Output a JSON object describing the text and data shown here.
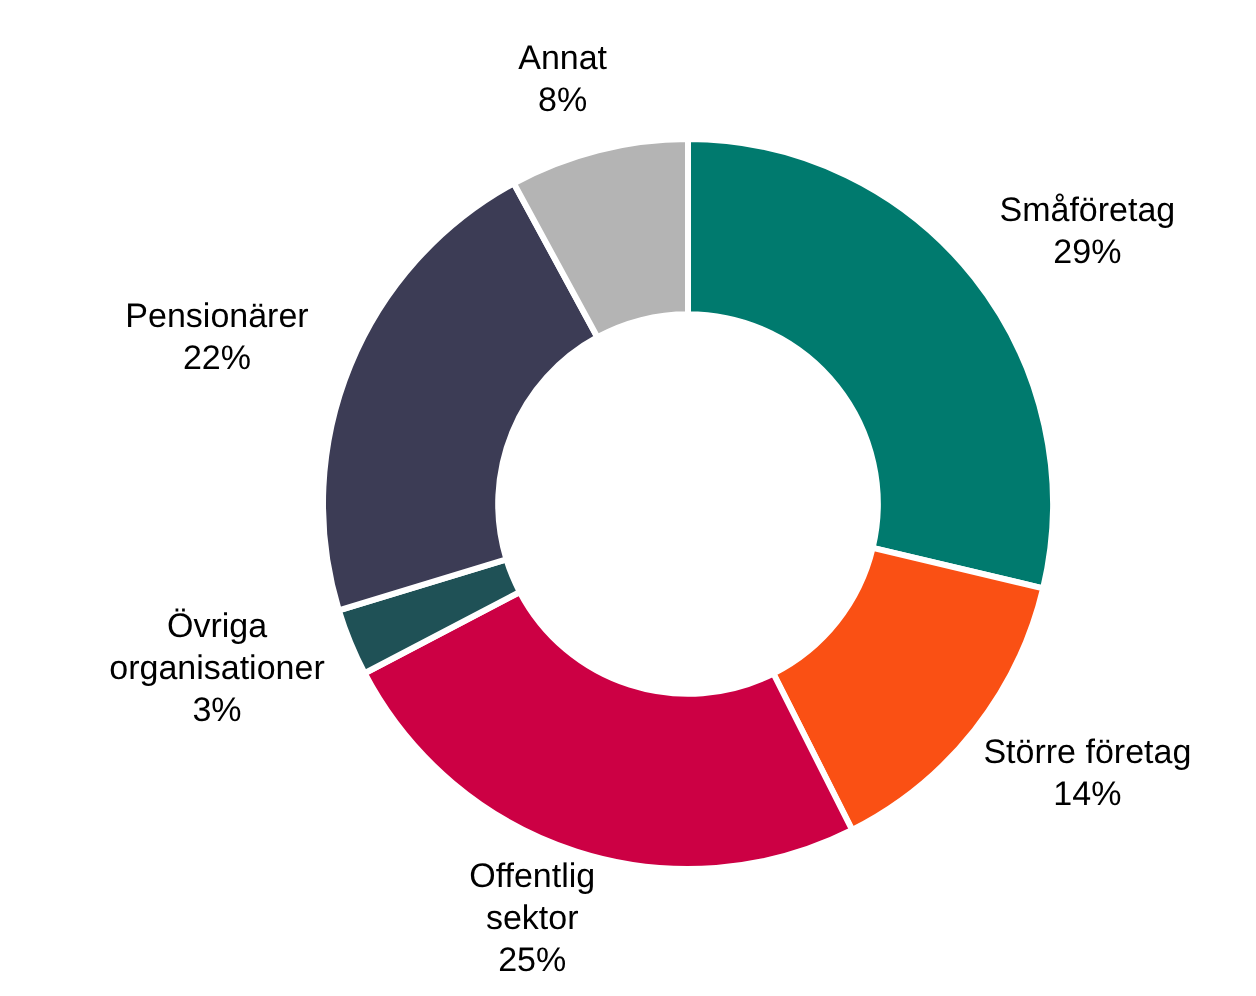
{
  "chart_data": {
    "type": "donut",
    "categories": [
      "Småföretag",
      "Större företag",
      "Offentlig\nsektor",
      "Övriga\norganisationer",
      "Pensionärer",
      "Annat"
    ],
    "values": [
      29,
      14,
      25,
      3,
      22,
      8
    ],
    "colors": [
      "#007a6e",
      "#fa5014",
      "#cc0044",
      "#1f5156",
      "#3c3c55",
      "#b4b4b4"
    ],
    "value_labels": [
      "29%",
      "14%",
      "25%",
      "3%",
      "22%",
      "8%"
    ],
    "legend": false
  }
}
